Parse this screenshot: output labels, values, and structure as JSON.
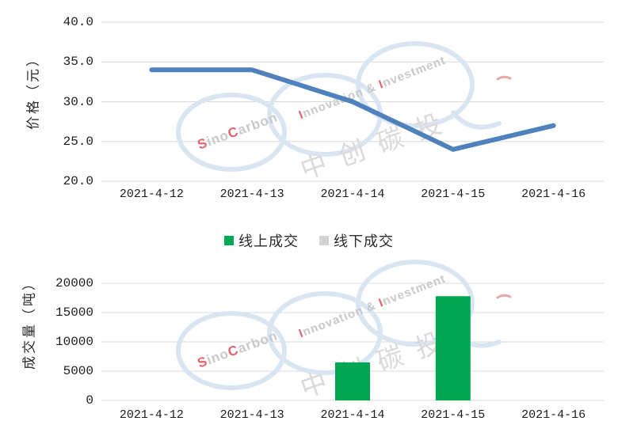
{
  "watermark": {
    "brand_parts": [
      "S",
      "ino",
      "C",
      "arbon"
    ],
    "tagline_parts": [
      "I",
      "nnovation ",
      "&  ",
      "I",
      "nvestment"
    ],
    "cjk": "中创碳投"
  },
  "chart_data": [
    {
      "type": "line",
      "name": "price-trend",
      "title": "",
      "categories": [
        "2021-4-12",
        "2021-4-13",
        "2021-4-14",
        "2021-4-15",
        "2021-4-16"
      ],
      "values": [
        34,
        34,
        30,
        24,
        27
      ],
      "xlabel": "",
      "ylabel": "价格（元）",
      "ylim": [
        20,
        40
      ],
      "yticks": [
        20,
        25,
        30,
        35,
        40
      ],
      "ytick_labels": [
        "20.0",
        "25.0",
        "30.0",
        "35.0",
        "40.0"
      ],
      "line_color": "#4f81bd",
      "grid": "horizontal",
      "legend_position": "none"
    },
    {
      "type": "bar",
      "name": "volume",
      "title": "",
      "categories": [
        "2021-4-12",
        "2021-4-13",
        "2021-4-14",
        "2021-4-15",
        "2021-4-16"
      ],
      "series": [
        {
          "name": "线上成交",
          "color": "#00a651",
          "values": [
            0,
            0,
            6500,
            17800,
            0
          ]
        },
        {
          "name": "线下成交",
          "color": "#d3d3d3",
          "values": [
            0,
            0,
            0,
            0,
            0
          ]
        }
      ],
      "xlabel": "",
      "ylabel": "成交量（吨）",
      "ylim": [
        0,
        20000
      ],
      "yticks": [
        0,
        5000,
        10000,
        15000,
        20000
      ],
      "ytick_labels": [
        "0",
        "5000",
        "10000",
        "15000",
        "20000"
      ],
      "grid": "horizontal",
      "legend_position": "above-chart"
    }
  ]
}
